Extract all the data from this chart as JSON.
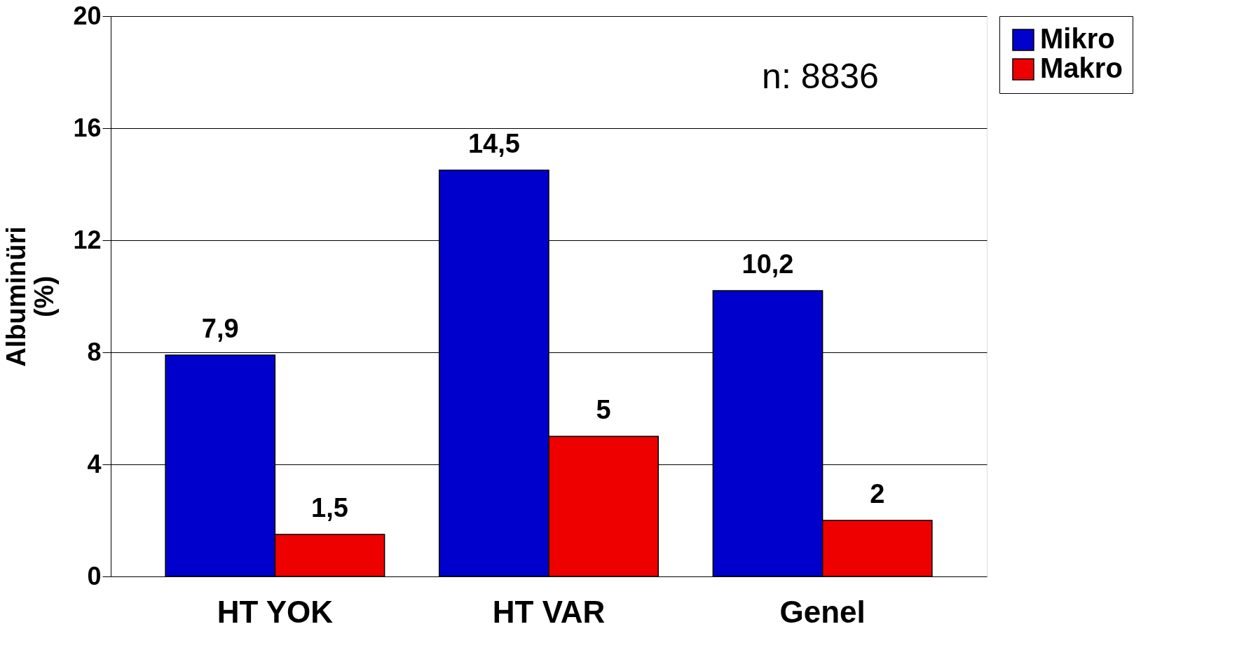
{
  "chart_data": {
    "type": "bar",
    "ylabel": "Albuminüri (%)",
    "categories": [
      "HT YOK",
      "HT VAR",
      "Genel"
    ],
    "series": [
      {
        "name": "Mikro",
        "color": "#0000cc",
        "values": [
          7.9,
          14.5,
          10.2
        ],
        "value_labels": [
          "7,9",
          "14,5",
          "10,2"
        ]
      },
      {
        "name": "Makro",
        "color": "#ee0000",
        "values": [
          1.5,
          5,
          2
        ],
        "value_labels": [
          "1,5",
          "5",
          "2"
        ]
      }
    ],
    "ylim": [
      0,
      20
    ],
    "yticks": [
      0,
      4,
      8,
      12,
      16,
      20
    ],
    "grid": "y",
    "legend": "right",
    "annotations": [
      "n: 8836"
    ]
  }
}
